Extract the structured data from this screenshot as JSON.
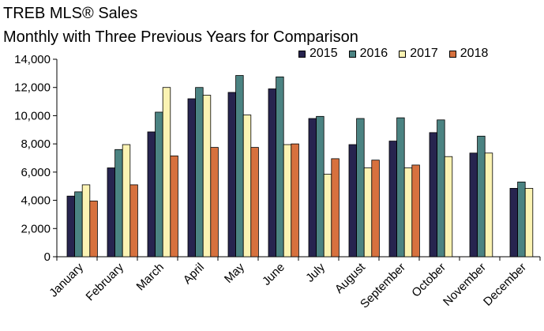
{
  "chart_data": {
    "type": "bar",
    "title": "TREB MLS® Sales",
    "subtitle": "Monthly with Three Previous Years for Comparison",
    "ylim": [
      0,
      14000
    ],
    "yticks": [
      "0",
      "2,000",
      "4,000",
      "6,000",
      "8,000",
      "10,000",
      "12,000",
      "14,000"
    ],
    "categories": [
      "January",
      "February",
      "March",
      "April",
      "May",
      "June",
      "July",
      "August",
      "September",
      "October",
      "November",
      "December"
    ],
    "legend_position": "top-right",
    "grid": false,
    "series": [
      {
        "name": "2015",
        "color": "#27244f",
        "values": [
          4300,
          6300,
          8850,
          11200,
          11650,
          11900,
          9800,
          7950,
          8200,
          8800,
          7350,
          4850
        ]
      },
      {
        "name": "2016",
        "color": "#4b8382",
        "values": [
          4600,
          7600,
          10250,
          12000,
          12850,
          12750,
          9950,
          9800,
          9850,
          9700,
          8550,
          5300
        ]
      },
      {
        "name": "2017",
        "color": "#fbf3b3",
        "values": [
          5100,
          7950,
          12000,
          11450,
          10050,
          7950,
          5850,
          6300,
          6300,
          7100,
          7350,
          4850
        ]
      },
      {
        "name": "2018",
        "color": "#d7713e",
        "values": [
          3950,
          5100,
          7150,
          7750,
          7750,
          8000,
          6950,
          6850,
          6500,
          null,
          null,
          null
        ]
      }
    ]
  }
}
